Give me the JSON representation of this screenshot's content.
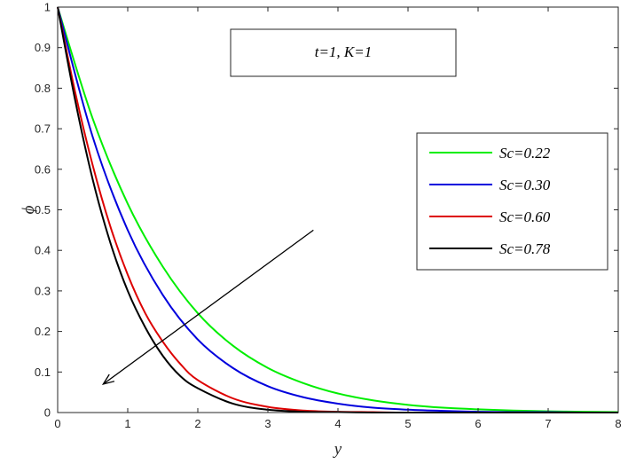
{
  "chart_data": {
    "type": "line",
    "xlabel": "y",
    "ylabel": "ϕ",
    "xlim": [
      0,
      8
    ],
    "ylim": [
      0,
      1
    ],
    "xticks": [
      "0",
      "1",
      "2",
      "3",
      "4",
      "5",
      "6",
      "7",
      "8"
    ],
    "yticks": [
      "0",
      "0.1",
      "0.2",
      "0.3",
      "0.4",
      "0.5",
      "0.6",
      "0.7",
      "0.8",
      "0.9",
      "1"
    ],
    "grid": false,
    "legend_position": "right",
    "annotation": "t=1, K=1",
    "series": [
      {
        "name": "Sc=0.22",
        "color": "#00ee00",
        "x": [
          0,
          0.5,
          1,
          1.5,
          2,
          2.5,
          3,
          3.5,
          4,
          4.5,
          5,
          5.5,
          6,
          6.5,
          7,
          7.5,
          8
        ],
        "y": [
          1.0,
          0.725,
          0.515,
          0.36,
          0.245,
          0.165,
          0.11,
          0.073,
          0.047,
          0.03,
          0.019,
          0.012,
          0.008,
          0.005,
          0.003,
          0.002,
          0.001
        ]
      },
      {
        "name": "Sc=0.30",
        "color": "#0000dd",
        "x": [
          0,
          0.5,
          1,
          1.5,
          2,
          2.5,
          3,
          3.5,
          4,
          4.5,
          5,
          5.5,
          6,
          6.5,
          7,
          7.5,
          8
        ],
        "y": [
          1.0,
          0.68,
          0.45,
          0.29,
          0.18,
          0.11,
          0.065,
          0.038,
          0.022,
          0.012,
          0.007,
          0.004,
          0.002,
          0.001,
          0.001,
          0.0,
          0.0
        ]
      },
      {
        "name": "Sc=0.60",
        "color": "#dd0000",
        "x": [
          0,
          0.25,
          0.5,
          0.75,
          1,
          1.25,
          1.5,
          1.75,
          2,
          2.5,
          3,
          3.5,
          4,
          4.5,
          5,
          6,
          7,
          8
        ],
        "y": [
          1.0,
          0.79,
          0.61,
          0.46,
          0.34,
          0.245,
          0.175,
          0.12,
          0.08,
          0.035,
          0.014,
          0.005,
          0.002,
          0.001,
          0.0,
          0.0,
          0.0,
          0.0
        ]
      },
      {
        "name": "Sc=0.78",
        "color": "#000000",
        "x": [
          0,
          0.25,
          0.5,
          0.75,
          1,
          1.25,
          1.5,
          1.75,
          2,
          2.5,
          3,
          3.5,
          4,
          4.5,
          5,
          6,
          7,
          8
        ],
        "y": [
          1.0,
          0.77,
          0.575,
          0.42,
          0.3,
          0.21,
          0.14,
          0.09,
          0.06,
          0.022,
          0.007,
          0.002,
          0.001,
          0.0,
          0.0,
          0.0,
          0.0,
          0.0
        ]
      }
    ],
    "arrow": {
      "from": [
        3.65,
        0.45
      ],
      "to": [
        0.65,
        0.07
      ]
    }
  }
}
